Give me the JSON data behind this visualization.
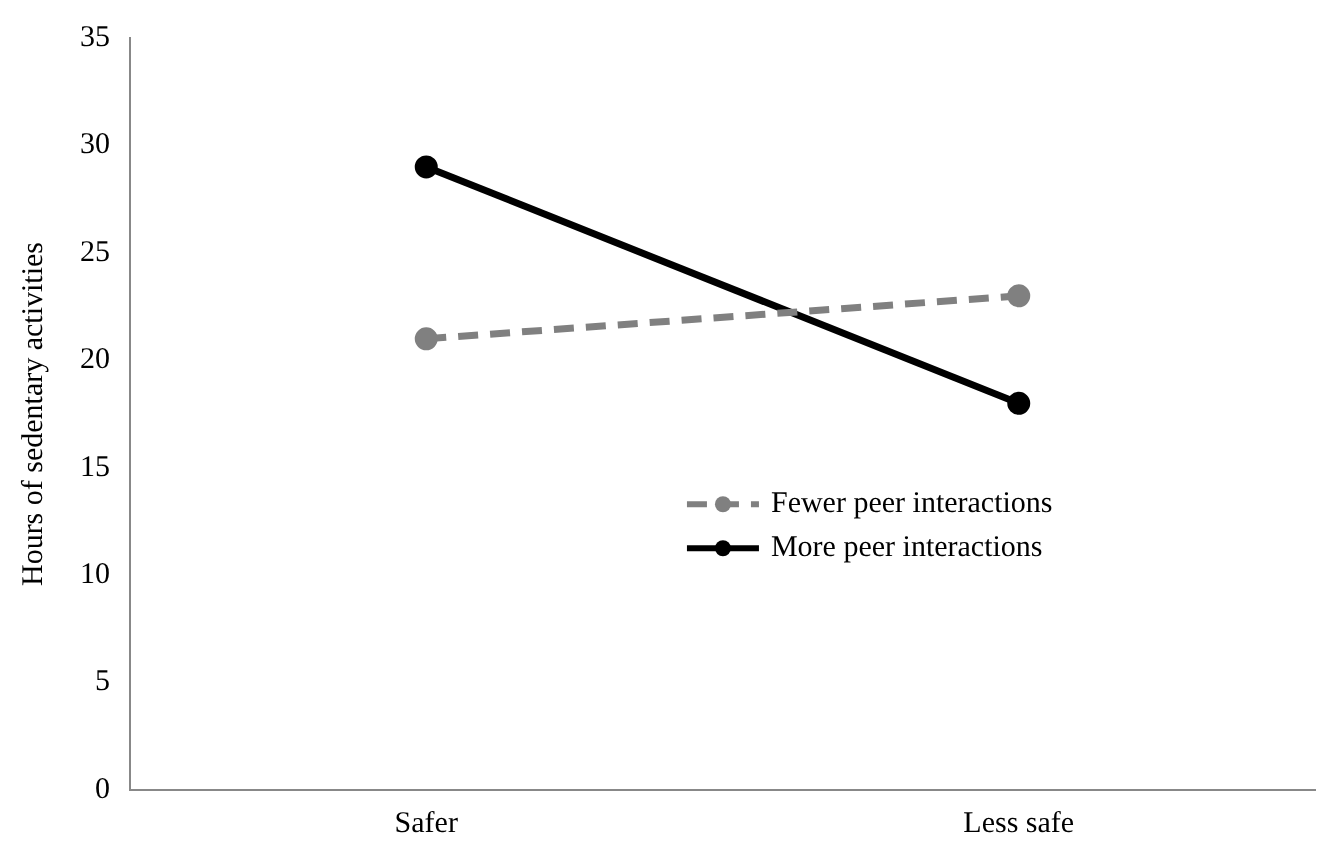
{
  "chart_data": {
    "type": "line",
    "ylabel": "Hours of sedentary activities",
    "categories": [
      "Safer",
      "Less safe"
    ],
    "series": [
      {
        "name": "Fewer peer interactions",
        "color": "#808080",
        "values": [
          21,
          23
        ],
        "line_style": "dashed"
      },
      {
        "name": "More peer interactions",
        "color": "#000000",
        "values": [
          29,
          18
        ],
        "line_style": "solid"
      }
    ],
    "ylim": [
      0,
      35
    ],
    "yticks": [
      0,
      5,
      10,
      15,
      20,
      25,
      30,
      35
    ],
    "grid": false,
    "legend": "right",
    "marker": "circle"
  }
}
